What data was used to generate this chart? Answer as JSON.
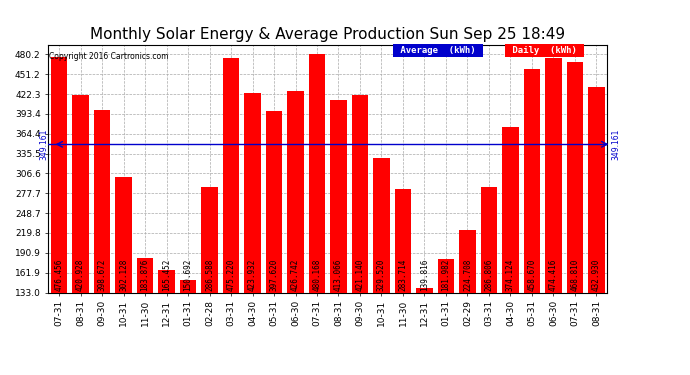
{
  "title": "Monthly Solar Energy & Average Production Sun Sep 25 18:49",
  "copyright": "Copyright 2016 Cartronics.com",
  "categories": [
    "07-31",
    "08-31",
    "09-30",
    "10-31",
    "11-30",
    "12-31",
    "01-31",
    "02-28",
    "03-31",
    "04-30",
    "05-31",
    "06-30",
    "07-31",
    "08-31",
    "09-30",
    "10-31",
    "11-30",
    "12-31",
    "01-31",
    "02-29",
    "03-31",
    "04-30",
    "05-31",
    "06-30",
    "07-31",
    "08-31"
  ],
  "values": [
    476.456,
    420.928,
    398.672,
    302.128,
    183.876,
    165.452,
    150.692,
    286.588,
    475.22,
    423.932,
    397.62,
    426.742,
    480.168,
    413.066,
    421.14,
    329.52,
    283.714,
    139.816,
    181.982,
    224.708,
    286.806,
    374.124,
    458.67,
    474.416,
    468.81,
    432.93
  ],
  "average": 349.161,
  "bar_color": "#ff0000",
  "average_color": "#0000cc",
  "background_color": "#ffffff",
  "plot_bg_color": "#ffffff",
  "grid_color": "#aaaaaa",
  "ylim_min": 133.0,
  "ylim_max": 494.0,
  "yticks": [
    133.0,
    161.9,
    190.9,
    219.8,
    248.7,
    277.7,
    306.6,
    335.5,
    364.4,
    393.4,
    422.3,
    451.2,
    480.2
  ],
  "title_fontsize": 11,
  "tick_fontsize": 6.5,
  "label_fontsize": 5.5,
  "legend_avg_label": "Average  (kWh)",
  "legend_daily_label": "Daily  (kWh)"
}
